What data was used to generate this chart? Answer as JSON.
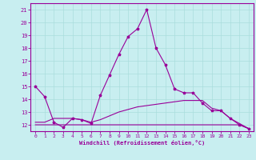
{
  "xlabel": "Windchill (Refroidissement éolien,°C)",
  "x": [
    0,
    1,
    2,
    3,
    4,
    5,
    6,
    7,
    8,
    9,
    10,
    11,
    12,
    13,
    14,
    15,
    16,
    17,
    18,
    19,
    20,
    21,
    22,
    23
  ],
  "line1": [
    15.0,
    14.2,
    12.2,
    11.8,
    12.5,
    12.4,
    12.1,
    14.3,
    15.9,
    17.5,
    18.9,
    19.5,
    21.0,
    18.0,
    16.7,
    14.8,
    14.5,
    14.5,
    13.7,
    13.1,
    13.1,
    12.5,
    12.0,
    11.7
  ],
  "line2": [
    12.0,
    12.0,
    12.0,
    12.0,
    12.0,
    12.0,
    12.0,
    12.0,
    12.0,
    12.0,
    12.0,
    12.0,
    12.0,
    12.0,
    12.0,
    12.0,
    12.0,
    12.0,
    12.0,
    12.0,
    12.0,
    12.0,
    12.0,
    11.7
  ],
  "line3": [
    12.2,
    12.2,
    12.5,
    12.5,
    12.5,
    12.4,
    12.2,
    12.4,
    12.7,
    13.0,
    13.2,
    13.4,
    13.5,
    13.6,
    13.7,
    13.8,
    13.9,
    13.9,
    13.9,
    13.3,
    13.1,
    12.5,
    12.1,
    11.7
  ],
  "bg_color": "#c8eef0",
  "grid_color": "#aadddd",
  "line_color": "#990099",
  "marker": "*",
  "ylim": [
    11.5,
    21.5
  ],
  "xlim": [
    -0.5,
    23.5
  ],
  "yticks": [
    12,
    13,
    14,
    15,
    16,
    17,
    18,
    19,
    20,
    21
  ],
  "xticks": [
    0,
    1,
    2,
    3,
    4,
    5,
    6,
    7,
    8,
    9,
    10,
    11,
    12,
    13,
    14,
    15,
    16,
    17,
    18,
    19,
    20,
    21,
    22,
    23
  ]
}
